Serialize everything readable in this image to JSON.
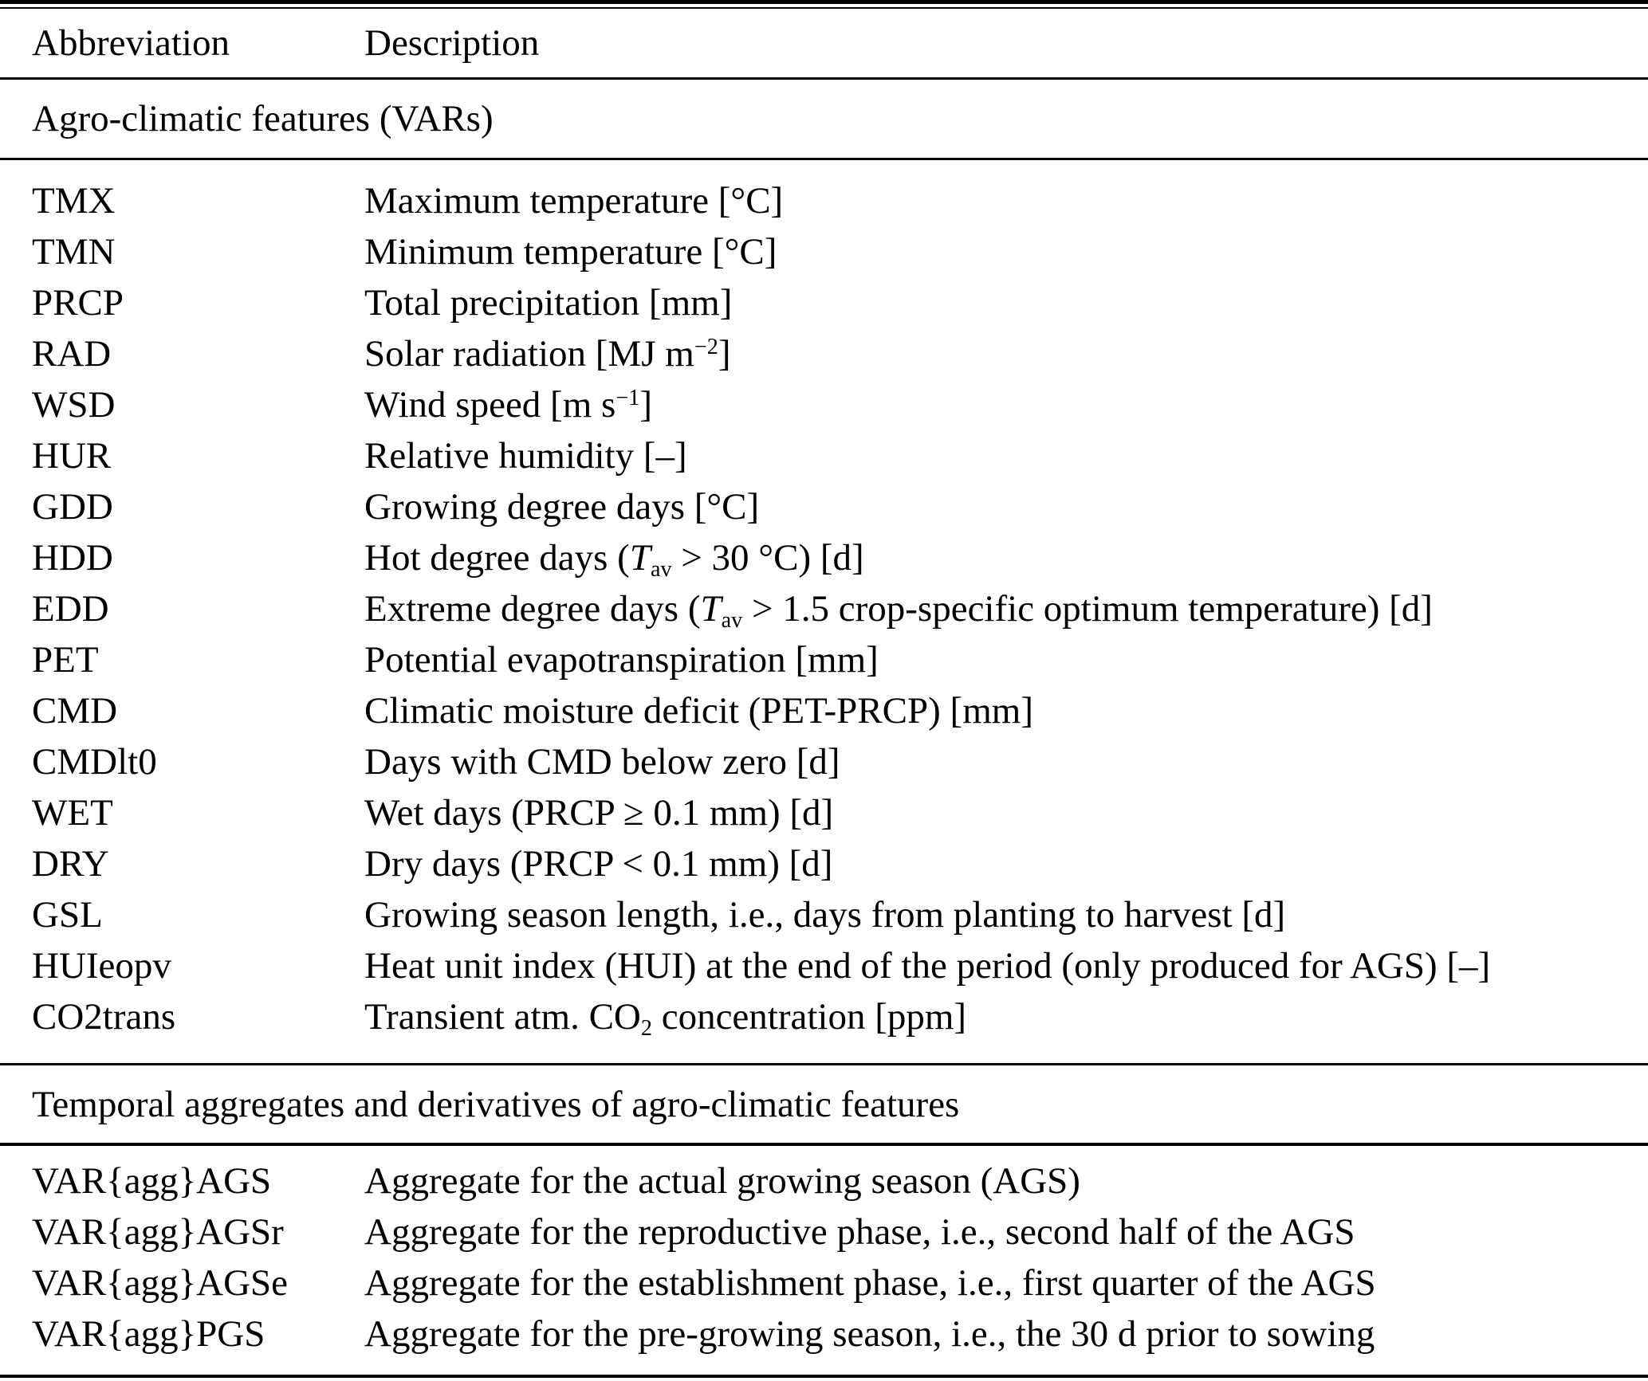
{
  "colors": {
    "text": "#000000",
    "background": "#ffffff",
    "rule": "#000000"
  },
  "table": {
    "header": {
      "abbreviation": "Abbreviation",
      "description": "Description"
    },
    "sections": [
      {
        "title": "Agro-climatic features (VARs)",
        "rows": [
          {
            "abbr": "TMX",
            "desc": "Maximum temperature [°C]"
          },
          {
            "abbr": "TMN",
            "desc": "Minimum temperature [°C]"
          },
          {
            "abbr": "PRCP",
            "desc": "Total precipitation [mm]"
          },
          {
            "abbr": "RAD",
            "desc": "Solar radiation [MJ m<sup>−2</sup>]"
          },
          {
            "abbr": "WSD",
            "desc": "Wind speed [m s<sup>−1</sup>]"
          },
          {
            "abbr": "HUR",
            "desc": "Relative humidity [–]"
          },
          {
            "abbr": "GDD",
            "desc": "Growing degree days [°C]"
          },
          {
            "abbr": "HDD",
            "desc": "Hot degree days (<i>T</i><sub>av</sub> &gt; 30 °C) [d]"
          },
          {
            "abbr": "EDD",
            "desc": "Extreme degree days (<i>T</i><sub>av</sub> &gt; 1.5 crop-specific optimum temperature) [d]"
          },
          {
            "abbr": "PET",
            "desc": "Potential evapotranspiration [mm]"
          },
          {
            "abbr": "CMD",
            "desc": "Climatic moisture deficit (PET-PRCP) [mm]"
          },
          {
            "abbr": "CMDlt0",
            "desc": "Days with CMD below zero [d]"
          },
          {
            "abbr": "WET",
            "desc": "Wet days (PRCP ≥ 0.1 mm) [d]"
          },
          {
            "abbr": "DRY",
            "desc": "Dry days (PRCP &lt; 0.1 mm) [d]"
          },
          {
            "abbr": "GSL",
            "desc": "Growing season length, i.e., days from planting to harvest [d]"
          },
          {
            "abbr": "HUIeopv",
            "desc": "Heat unit index (HUI) at the end of the period (only produced for AGS) [–]"
          },
          {
            "abbr": "CO2trans",
            "desc": "Transient atm. CO<sub>2</sub> concentration [ppm]"
          }
        ]
      },
      {
        "title": "Temporal aggregates and derivatives of agro-climatic features",
        "rows": [
          {
            "abbr": "VAR{agg}AGS",
            "desc": "Aggregate for the actual growing season (AGS)"
          },
          {
            "abbr": "VAR{agg}AGSr",
            "desc": "Aggregate for the reproductive phase, i.e., second half of the AGS"
          },
          {
            "abbr": "VAR{agg}AGSe",
            "desc": "Aggregate for the establishment phase, i.e., first quarter of the AGS"
          },
          {
            "abbr": "VAR{agg}PGS",
            "desc": "Aggregate for the pre-growing season, i.e., the 30 d prior to sowing"
          }
        ]
      }
    ]
  }
}
